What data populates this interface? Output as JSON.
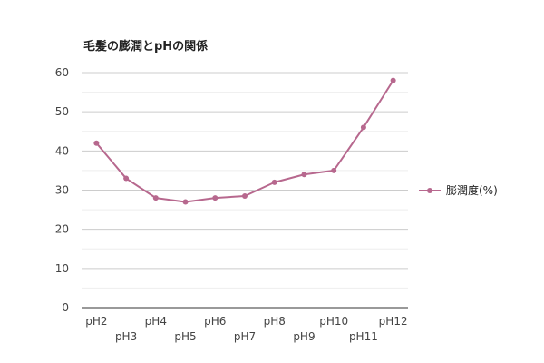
{
  "colors": {
    "series": "#b7688e",
    "grid_major": "#cccccc",
    "grid_minor": "#eeeeee",
    "baseline": "#333333",
    "background": "#ffffff"
  },
  "chart_data": {
    "type": "line",
    "title": "毛髪の膨潤とpHの関係",
    "xlabel": "",
    "ylabel": "",
    "categories": [
      "pH2",
      "pH3",
      "pH4",
      "pH5",
      "pH6",
      "pH7",
      "pH8",
      "pH9",
      "pH10",
      "pH11",
      "pH12"
    ],
    "series": [
      {
        "name": "膨潤度(%)",
        "values": [
          42,
          33,
          28,
          27,
          28,
          28.5,
          32,
          34,
          35,
          46,
          58
        ]
      }
    ],
    "ylim": [
      0,
      60
    ],
    "yticks": [
      "0",
      "10",
      "20",
      "30",
      "40",
      "50",
      "60"
    ],
    "grid": true,
    "legend_position": "right",
    "marker": "circle"
  }
}
